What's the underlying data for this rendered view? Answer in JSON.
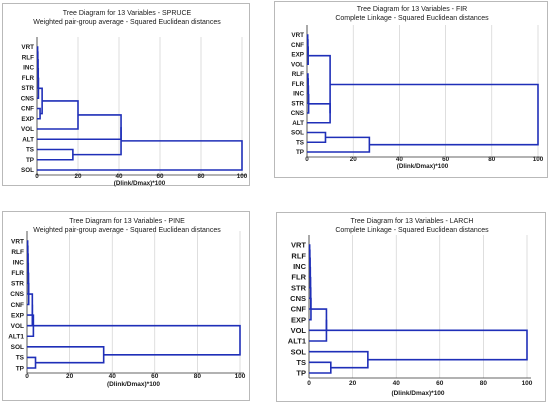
{
  "accent_color": "#1f2fb8",
  "chart_data": [
    {
      "type": "dendrogram",
      "title": "Tree Diagram for 13 Variables - SPRUCE",
      "subtitle": "Weighted pair-group average - Squared Euclidean distances",
      "xlabel": "(Dlink/Dmax)*100",
      "xlim": [
        0,
        100
      ],
      "xticks": [
        "0",
        "20",
        "40",
        "60",
        "80",
        "100"
      ],
      "leaves": [
        "VRT",
        "RLF",
        "INC",
        "FLR",
        "STR",
        "CNS",
        "CNF",
        "EXP",
        "VOL",
        "ALT",
        "TS",
        "TP",
        "SOL"
      ],
      "merges": [
        {
          "left": 0,
          "right": 1,
          "height": 0.3
        },
        {
          "left": 13,
          "right": 2,
          "height": 0.4
        },
        {
          "left": 14,
          "right": 3,
          "height": 0.5
        },
        {
          "left": 15,
          "right": 4,
          "height": 0.6
        },
        {
          "left": 16,
          "right": 5,
          "height": 0.7
        },
        {
          "left": 6,
          "right": 7,
          "height": 1.5
        },
        {
          "left": 17,
          "right": 18,
          "height": 2.5
        },
        {
          "left": 19,
          "right": 8,
          "height": 20
        },
        {
          "left": 10,
          "right": 11,
          "height": 17.5
        },
        {
          "left": 20,
          "right": 9,
          "height": 41
        },
        {
          "left": 22,
          "right": 21,
          "height": 41
        },
        {
          "left": 23,
          "right": 12,
          "height": 100
        }
      ]
    },
    {
      "type": "dendrogram",
      "title": "Tree Diagram for 13 Variables - FIR",
      "subtitle": "Complete Linkage - Squared Euclidean distances",
      "xlabel": "(Dlink/Dmax)*100",
      "xlim": [
        0,
        100
      ],
      "xticks": [
        "0",
        "20",
        "40",
        "60",
        "80",
        "100"
      ],
      "leaves": [
        "VRT",
        "CNF",
        "EXP",
        "VOL",
        "RLF",
        "FLR",
        "INC",
        "STR",
        "CNS",
        "ALT",
        "SOL",
        "TS",
        "TP"
      ],
      "merges": [
        {
          "left": 0,
          "right": 1,
          "height": 0.3
        },
        {
          "left": 13,
          "right": 2,
          "height": 0.4
        },
        {
          "left": 14,
          "right": 3,
          "height": 0.5
        },
        {
          "left": 4,
          "right": 5,
          "height": 0.4
        },
        {
          "left": 16,
          "right": 6,
          "height": 0.5
        },
        {
          "left": 17,
          "right": 7,
          "height": 0.6
        },
        {
          "left": 18,
          "right": 8,
          "height": 0.7
        },
        {
          "left": 19,
          "right": 9,
          "height": 10
        },
        {
          "left": 15,
          "right": 20,
          "height": 10
        },
        {
          "left": 10,
          "right": 11,
          "height": 8
        },
        {
          "left": 22,
          "right": 12,
          "height": 27
        },
        {
          "left": 21,
          "right": 23,
          "height": 100
        }
      ]
    },
    {
      "type": "dendrogram",
      "title": "Tree Diagram for 13 Variables - PINE",
      "subtitle": "Weighted pair-group average - Squared Euclidean distances",
      "xlabel": "(Dlink/Dmax)*100",
      "xlim": [
        0,
        100
      ],
      "xticks": [
        "0",
        "20",
        "40",
        "60",
        "80",
        "100"
      ],
      "leaves": [
        "VRT",
        "RLF",
        "INC",
        "FLR",
        "STR",
        "CNS",
        "CNF",
        "EXP",
        "VOL",
        "ALT1",
        "SOL",
        "TS",
        "TP"
      ],
      "merges": [
        {
          "left": 0,
          "right": 1,
          "height": 0.3
        },
        {
          "left": 13,
          "right": 2,
          "height": 0.4
        },
        {
          "left": 14,
          "right": 3,
          "height": 0.5
        },
        {
          "left": 15,
          "right": 4,
          "height": 0.6
        },
        {
          "left": 16,
          "right": 5,
          "height": 0.7
        },
        {
          "left": 17,
          "right": 6,
          "height": 0.8
        },
        {
          "left": 18,
          "right": 7,
          "height": 2.5
        },
        {
          "left": 19,
          "right": 8,
          "height": 2.5
        },
        {
          "left": 20,
          "right": 9,
          "height": 3
        },
        {
          "left": 11,
          "right": 12,
          "height": 4
        },
        {
          "left": 10,
          "right": 22,
          "height": 36
        },
        {
          "left": 21,
          "right": 23,
          "height": 100
        }
      ]
    },
    {
      "type": "dendrogram",
      "title": "Tree Diagram for 13 Variables - LARCH",
      "subtitle": "Complete Linkage - Squared Euclidean distances",
      "xlabel": "(Dlink/Dmax)*100",
      "xlim": [
        0,
        100
      ],
      "xticks": [
        "0",
        "20",
        "40",
        "60",
        "80",
        "100"
      ],
      "leaves": [
        "VRT",
        "RLF",
        "INC",
        "FLR",
        "STR",
        "CNS",
        "CNF",
        "EXP",
        "VOL",
        "ALT1",
        "SOL",
        "TS",
        "TP"
      ],
      "merges": [
        {
          "left": 0,
          "right": 1,
          "height": 0.3
        },
        {
          "left": 13,
          "right": 2,
          "height": 0.4
        },
        {
          "left": 14,
          "right": 3,
          "height": 0.5
        },
        {
          "left": 15,
          "right": 4,
          "height": 0.6
        },
        {
          "left": 16,
          "right": 5,
          "height": 0.7
        },
        {
          "left": 17,
          "right": 6,
          "height": 0.8
        },
        {
          "left": 18,
          "right": 7,
          "height": 0.9
        },
        {
          "left": 19,
          "right": 8,
          "height": 8
        },
        {
          "left": 20,
          "right": 9,
          "height": 8
        },
        {
          "left": 11,
          "right": 12,
          "height": 10
        },
        {
          "left": 10,
          "right": 22,
          "height": 27
        },
        {
          "left": 21,
          "right": 23,
          "height": 100
        }
      ]
    }
  ]
}
